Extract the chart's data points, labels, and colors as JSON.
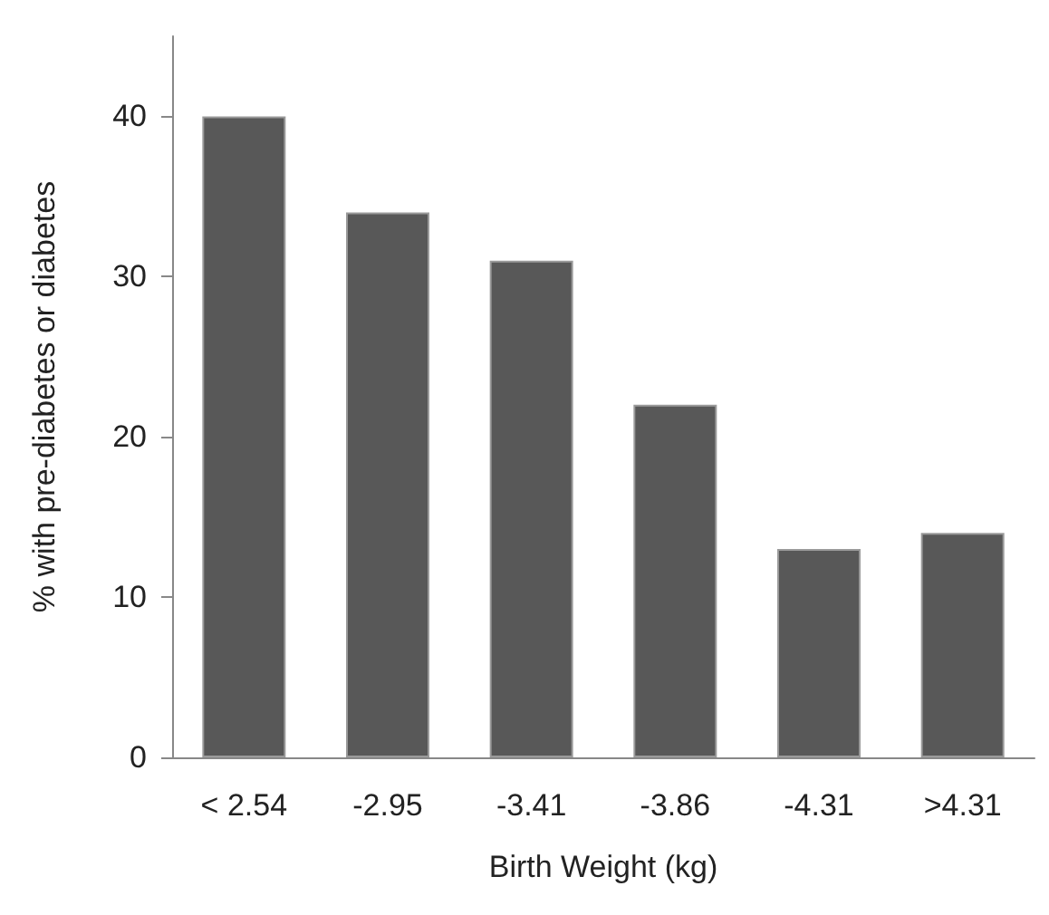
{
  "chart_data": {
    "type": "bar",
    "xlabel": "Birth Weight (kg)",
    "ylabel": "% with pre-diabetes or diabetes",
    "categories": [
      "< 2.54",
      "-2.95",
      "-3.41",
      "-3.86",
      "-4.31",
      ">4.31"
    ],
    "values": [
      40,
      34,
      31,
      22,
      13,
      14
    ],
    "color": "#585858",
    "ylim": [
      0,
      45
    ],
    "yticks": [
      0,
      10,
      20,
      30,
      40
    ],
    "grid": false
  }
}
